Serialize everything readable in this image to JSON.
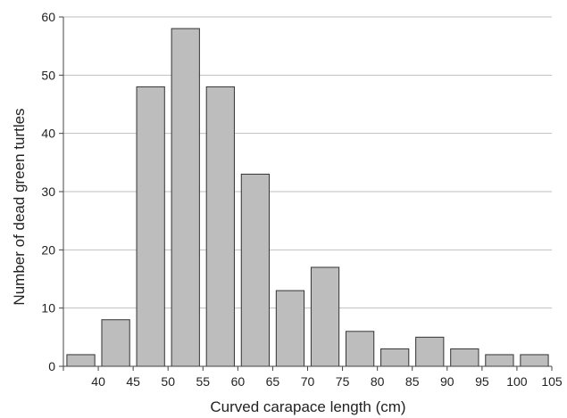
{
  "chart_data": {
    "type": "bar",
    "title": "",
    "xlabel": "Curved carapace length (cm)",
    "ylabel": "Number of dead green turtles",
    "x_tick_labels": [
      "40",
      "45",
      "50",
      "55",
      "60",
      "65",
      "70",
      "75",
      "80",
      "85",
      "90",
      "95",
      "100",
      "105"
    ],
    "y_tick_labels": [
      "0",
      "10",
      "20",
      "30",
      "40",
      "50",
      "60"
    ],
    "ylim": [
      0,
      60
    ],
    "xlim": [
      35,
      105
    ],
    "bin_width": 5,
    "bins": [
      {
        "from": 35,
        "to": 40,
        "value": 2
      },
      {
        "from": 40,
        "to": 45,
        "value": 8
      },
      {
        "from": 45,
        "to": 50,
        "value": 48
      },
      {
        "from": 50,
        "to": 55,
        "value": 58
      },
      {
        "from": 55,
        "to": 60,
        "value": 48
      },
      {
        "from": 60,
        "to": 65,
        "value": 33
      },
      {
        "from": 65,
        "to": 70,
        "value": 13
      },
      {
        "from": 70,
        "to": 75,
        "value": 17
      },
      {
        "from": 75,
        "to": 80,
        "value": 6
      },
      {
        "from": 80,
        "to": 85,
        "value": 3
      },
      {
        "from": 85,
        "to": 90,
        "value": 5
      },
      {
        "from": 90,
        "to": 95,
        "value": 3
      },
      {
        "from": 95,
        "to": 100,
        "value": 2
      },
      {
        "from": 100,
        "to": 105,
        "value": 2
      }
    ],
    "grid": "horizontal",
    "legend": "none",
    "colors": {
      "bar_fill": "#bdbdbd",
      "bar_stroke": "#333333",
      "grid": "#bfbfbf",
      "axis": "#444444",
      "text": "#222222"
    }
  }
}
